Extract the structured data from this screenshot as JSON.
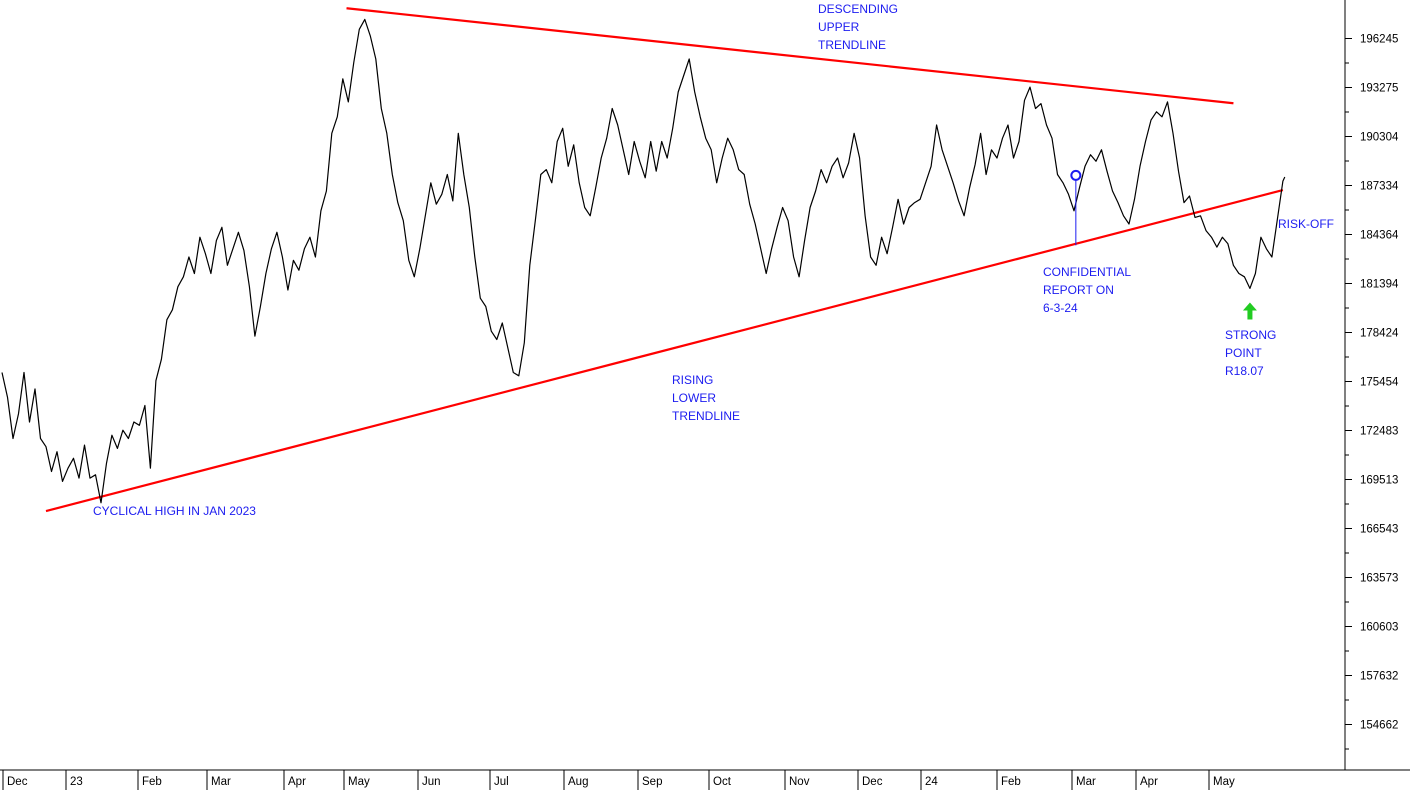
{
  "chart_data": {
    "type": "line",
    "title": "",
    "xlabel": "",
    "ylabel": "",
    "y_ticks": [
      "196245",
      "193275",
      "190304",
      "187334",
      "184364",
      "181394",
      "178424",
      "175454",
      "172483",
      "169513",
      "166543",
      "163573",
      "160603",
      "157632",
      "154662"
    ],
    "ylim": [
      152000,
      199000
    ],
    "x_ticks": [
      "Dec",
      "23",
      "Feb",
      "Mar",
      "Apr",
      "May",
      "Jun",
      "Jul",
      "Aug",
      "Sep",
      "Oct",
      "Nov",
      "Dec",
      "24",
      "Feb",
      "Mar",
      "Apr",
      "May"
    ],
    "grid": false,
    "series": [
      {
        "color": "#000000",
        "points": [
          [
            0,
            176000
          ],
          [
            0.15,
            174500
          ],
          [
            0.3,
            172000
          ],
          [
            0.45,
            173500
          ],
          [
            0.6,
            176000
          ],
          [
            0.75,
            173000
          ],
          [
            0.9,
            175000
          ],
          [
            1.05,
            172000
          ],
          [
            1.2,
            171500
          ],
          [
            1.35,
            170000
          ],
          [
            1.5,
            171200
          ],
          [
            1.65,
            169400
          ],
          [
            1.8,
            170200
          ],
          [
            1.95,
            170800
          ],
          [
            2.1,
            169600
          ],
          [
            2.25,
            171600
          ],
          [
            2.4,
            169600
          ],
          [
            2.55,
            169800
          ],
          [
            2.7,
            168100
          ],
          [
            2.85,
            170500
          ],
          [
            3.0,
            172200
          ],
          [
            3.15,
            171400
          ],
          [
            3.3,
            172500
          ],
          [
            3.45,
            172000
          ],
          [
            3.6,
            173000
          ],
          [
            3.75,
            172800
          ],
          [
            3.9,
            174000
          ],
          [
            4.05,
            170200
          ],
          [
            4.2,
            175500
          ],
          [
            4.35,
            176800
          ],
          [
            4.5,
            179200
          ],
          [
            4.65,
            179800
          ],
          [
            4.8,
            181200
          ],
          [
            4.95,
            181800
          ],
          [
            5.1,
            183000
          ],
          [
            5.25,
            182000
          ],
          [
            5.4,
            184200
          ],
          [
            5.55,
            183200
          ],
          [
            5.7,
            182000
          ],
          [
            5.85,
            184000
          ],
          [
            6.0,
            184800
          ],
          [
            6.15,
            182500
          ],
          [
            6.3,
            183500
          ],
          [
            6.45,
            184500
          ],
          [
            6.6,
            183400
          ],
          [
            6.75,
            181200
          ],
          [
            6.9,
            178200
          ],
          [
            7.05,
            180000
          ],
          [
            7.2,
            182000
          ],
          [
            7.35,
            183500
          ],
          [
            7.5,
            184500
          ],
          [
            7.65,
            183000
          ],
          [
            7.8,
            181000
          ],
          [
            7.95,
            182800
          ],
          [
            8.1,
            182200
          ],
          [
            8.25,
            183500
          ],
          [
            8.4,
            184200
          ],
          [
            8.55,
            183000
          ],
          [
            8.7,
            185800
          ],
          [
            8.85,
            187000
          ],
          [
            9.0,
            190500
          ],
          [
            9.15,
            191500
          ],
          [
            9.3,
            193800
          ],
          [
            9.45,
            192400
          ],
          [
            9.6,
            194800
          ],
          [
            9.75,
            196800
          ],
          [
            9.9,
            197400
          ],
          [
            10.05,
            196400
          ],
          [
            10.2,
            195000
          ],
          [
            10.35,
            192000
          ],
          [
            10.5,
            190500
          ],
          [
            10.65,
            188000
          ],
          [
            10.8,
            186300
          ],
          [
            10.95,
            185200
          ],
          [
            11.1,
            182800
          ],
          [
            11.25,
            181800
          ],
          [
            11.4,
            183500
          ],
          [
            11.55,
            185500
          ],
          [
            11.7,
            187500
          ],
          [
            11.85,
            186200
          ],
          [
            12.0,
            186800
          ],
          [
            12.15,
            188000
          ],
          [
            12.3,
            186400
          ],
          [
            12.45,
            190500
          ],
          [
            12.6,
            188000
          ],
          [
            12.75,
            186000
          ],
          [
            12.9,
            183000
          ],
          [
            13.05,
            180500
          ],
          [
            13.2,
            180000
          ],
          [
            13.35,
            178500
          ],
          [
            13.5,
            178000
          ],
          [
            13.65,
            179000
          ],
          [
            13.8,
            177500
          ],
          [
            13.95,
            176000
          ],
          [
            14.1,
            175800
          ],
          [
            14.25,
            177800
          ],
          [
            14.4,
            182500
          ],
          [
            14.55,
            185200
          ],
          [
            14.7,
            188000
          ],
          [
            14.85,
            188300
          ],
          [
            15.0,
            187500
          ],
          [
            15.15,
            190000
          ],
          [
            15.3,
            190800
          ],
          [
            15.45,
            188500
          ],
          [
            15.6,
            189800
          ],
          [
            15.75,
            187500
          ],
          [
            15.9,
            186000
          ],
          [
            16.05,
            185500
          ],
          [
            16.2,
            187200
          ],
          [
            16.35,
            189000
          ],
          [
            16.5,
            190200
          ],
          [
            16.65,
            192000
          ],
          [
            16.8,
            191000
          ],
          [
            16.95,
            189500
          ],
          [
            17.1,
            188000
          ],
          [
            17.25,
            190000
          ],
          [
            17.4,
            188800
          ],
          [
            17.55,
            187800
          ],
          [
            17.7,
            190000
          ],
          [
            17.85,
            188200
          ],
          [
            18.0,
            190000
          ],
          [
            18.15,
            189000
          ],
          [
            18.3,
            190800
          ],
          [
            18.45,
            193000
          ],
          [
            18.6,
            194000
          ],
          [
            18.75,
            195000
          ],
          [
            18.9,
            193000
          ],
          [
            19.05,
            191500
          ],
          [
            19.2,
            190200
          ],
          [
            19.35,
            189500
          ],
          [
            19.5,
            187500
          ],
          [
            19.65,
            189000
          ],
          [
            19.8,
            190200
          ],
          [
            19.95,
            189500
          ],
          [
            20.1,
            188300
          ],
          [
            20.25,
            188000
          ],
          [
            20.4,
            186200
          ],
          [
            20.55,
            185000
          ],
          [
            20.7,
            183500
          ],
          [
            20.85,
            182000
          ],
          [
            21.0,
            183500
          ],
          [
            21.15,
            184800
          ],
          [
            21.3,
            186000
          ],
          [
            21.45,
            185200
          ],
          [
            21.6,
            183000
          ],
          [
            21.75,
            181800
          ],
          [
            21.9,
            184000
          ],
          [
            22.05,
            186000
          ],
          [
            22.2,
            187000
          ],
          [
            22.35,
            188300
          ],
          [
            22.5,
            187500
          ],
          [
            22.65,
            188500
          ],
          [
            22.8,
            189000
          ],
          [
            22.95,
            187800
          ],
          [
            23.1,
            188700
          ],
          [
            23.25,
            190500
          ],
          [
            23.4,
            189000
          ],
          [
            23.55,
            185500
          ],
          [
            23.7,
            183000
          ],
          [
            23.85,
            182500
          ],
          [
            24.0,
            184200
          ],
          [
            24.15,
            183200
          ],
          [
            24.3,
            184800
          ],
          [
            24.45,
            186500
          ],
          [
            24.6,
            185000
          ],
          [
            24.75,
            186000
          ],
          [
            24.9,
            186300
          ],
          [
            25.05,
            186500
          ],
          [
            25.2,
            187500
          ],
          [
            25.35,
            188500
          ],
          [
            25.5,
            191000
          ],
          [
            25.65,
            189500
          ],
          [
            25.8,
            188500
          ],
          [
            25.95,
            187500
          ],
          [
            26.1,
            186400
          ],
          [
            26.25,
            185500
          ],
          [
            26.4,
            187200
          ],
          [
            26.55,
            188600
          ],
          [
            26.7,
            190500
          ],
          [
            26.85,
            188000
          ],
          [
            27.0,
            189500
          ],
          [
            27.15,
            189000
          ],
          [
            27.3,
            190200
          ],
          [
            27.45,
            191000
          ],
          [
            27.6,
            189000
          ],
          [
            27.75,
            190000
          ],
          [
            27.9,
            192500
          ],
          [
            28.05,
            193300
          ],
          [
            28.2,
            192000
          ],
          [
            28.35,
            192300
          ],
          [
            28.5,
            191000
          ],
          [
            28.65,
            190200
          ],
          [
            28.8,
            188000
          ],
          [
            28.95,
            187500
          ],
          [
            29.1,
            186800
          ],
          [
            29.25,
            185800
          ],
          [
            29.4,
            187200
          ],
          [
            29.55,
            188500
          ],
          [
            29.7,
            189200
          ],
          [
            29.85,
            188800
          ],
          [
            30.0,
            189500
          ],
          [
            30.15,
            188200
          ],
          [
            30.3,
            187000
          ],
          [
            30.45,
            186300
          ],
          [
            30.6,
            185500
          ],
          [
            30.75,
            185000
          ],
          [
            30.9,
            186500
          ],
          [
            31.05,
            188500
          ],
          [
            31.2,
            190000
          ],
          [
            31.35,
            191300
          ],
          [
            31.5,
            191800
          ],
          [
            31.65,
            191500
          ],
          [
            31.8,
            192400
          ],
          [
            31.95,
            190500
          ],
          [
            32.1,
            188200
          ],
          [
            32.25,
            186300
          ],
          [
            32.4,
            186700
          ],
          [
            32.55,
            185400
          ],
          [
            32.7,
            185500
          ],
          [
            32.85,
            184600
          ],
          [
            33.0,
            184200
          ],
          [
            33.15,
            183600
          ],
          [
            33.3,
            184200
          ],
          [
            33.45,
            183800
          ],
          [
            33.6,
            182500
          ],
          [
            33.75,
            182000
          ],
          [
            33.9,
            181800
          ],
          [
            34.05,
            181100
          ],
          [
            34.2,
            182000
          ],
          [
            34.35,
            184200
          ],
          [
            34.5,
            183500
          ],
          [
            34.65,
            183000
          ],
          [
            34.8,
            185300
          ],
          [
            34.95,
            187600
          ],
          [
            35.0,
            187850
          ]
        ]
      }
    ],
    "trendlines": [
      {
        "color": "#ff0000",
        "from": [
          1.2,
          167600
        ],
        "to": [
          34.95,
          187060
        ]
      },
      {
        "color": "#ff0000",
        "from": [
          9.4,
          198080
        ],
        "to": [
          33.6,
          192320
        ]
      }
    ],
    "markers": [
      {
        "type": "circle",
        "color": "#1c1cf0",
        "x": 29.3,
        "y": 187950
      },
      {
        "type": "up-arrow",
        "color": "#22cc22",
        "x": 34.05,
        "y": 179700
      }
    ],
    "annotations": [
      {
        "lines": [
          "DESCENDING",
          "UPPER",
          "TRENDLINE"
        ]
      },
      {
        "lines": [
          "RISING",
          "LOWER",
          "TRENDLINE"
        ]
      },
      {
        "lines": [
          "CYCLICAL HIGH IN JAN 2023"
        ]
      },
      {
        "lines": [
          "CONFIDENTIAL",
          "REPORT ON",
          "6-3-24"
        ]
      },
      {
        "lines": [
          "STRONG",
          "POINT",
          "R18.07"
        ]
      },
      {
        "lines": [
          "RISK-OFF"
        ]
      }
    ]
  }
}
